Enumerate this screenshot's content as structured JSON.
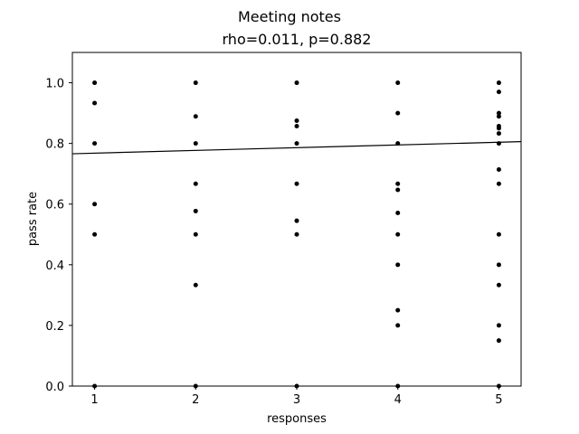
{
  "chart_data": {
    "type": "scatter",
    "title": "Meeting notes",
    "subtitle": "rho=0.011, p=0.882",
    "xlabel": "responses",
    "ylabel": "pass rate",
    "xlim": [
      0.78,
      5.22
    ],
    "ylim": [
      0.0,
      1.1
    ],
    "xticks": [
      1,
      2,
      3,
      4,
      5
    ],
    "xtick_labels": [
      "1",
      "2",
      "3",
      "4",
      "5"
    ],
    "yticks": [
      0.0,
      0.2,
      0.4,
      0.6,
      0.8,
      1.0
    ],
    "ytick_labels": [
      "0.0",
      "0.2",
      "0.4",
      "0.6",
      "0.8",
      "1.0"
    ],
    "grid": false,
    "legend": "none",
    "marker_color": "#000000",
    "line_color": "#000000",
    "points": [
      {
        "x": 1,
        "y": 1.0
      },
      {
        "x": 1,
        "y": 0.933
      },
      {
        "x": 1,
        "y": 0.8
      },
      {
        "x": 1,
        "y": 0.6
      },
      {
        "x": 1,
        "y": 0.5
      },
      {
        "x": 1,
        "y": 0.0
      },
      {
        "x": 2,
        "y": 1.0
      },
      {
        "x": 2,
        "y": 0.889
      },
      {
        "x": 2,
        "y": 0.8
      },
      {
        "x": 2,
        "y": 0.667
      },
      {
        "x": 2,
        "y": 0.577
      },
      {
        "x": 2,
        "y": 0.5
      },
      {
        "x": 2,
        "y": 0.333
      },
      {
        "x": 2,
        "y": 0.0
      },
      {
        "x": 3,
        "y": 1.0
      },
      {
        "x": 3,
        "y": 0.875
      },
      {
        "x": 3,
        "y": 0.857
      },
      {
        "x": 3,
        "y": 0.8
      },
      {
        "x": 3,
        "y": 0.667
      },
      {
        "x": 3,
        "y": 0.545
      },
      {
        "x": 3,
        "y": 0.5
      },
      {
        "x": 3,
        "y": 0.0
      },
      {
        "x": 4,
        "y": 1.0
      },
      {
        "x": 4,
        "y": 0.9
      },
      {
        "x": 4,
        "y": 0.8
      },
      {
        "x": 4,
        "y": 0.667
      },
      {
        "x": 4,
        "y": 0.647
      },
      {
        "x": 4,
        "y": 0.571
      },
      {
        "x": 4,
        "y": 0.5
      },
      {
        "x": 4,
        "y": 0.4
      },
      {
        "x": 4,
        "y": 0.25
      },
      {
        "x": 4,
        "y": 0.2
      },
      {
        "x": 4,
        "y": 0.0
      },
      {
        "x": 5,
        "y": 1.0
      },
      {
        "x": 5,
        "y": 0.97
      },
      {
        "x": 5,
        "y": 0.9
      },
      {
        "x": 5,
        "y": 0.889
      },
      {
        "x": 5,
        "y": 0.857
      },
      {
        "x": 5,
        "y": 0.85
      },
      {
        "x": 5,
        "y": 0.833
      },
      {
        "x": 5,
        "y": 0.8
      },
      {
        "x": 5,
        "y": 0.714
      },
      {
        "x": 5,
        "y": 0.667
      },
      {
        "x": 5,
        "y": 0.5
      },
      {
        "x": 5,
        "y": 0.4
      },
      {
        "x": 5,
        "y": 0.333
      },
      {
        "x": 5,
        "y": 0.2
      },
      {
        "x": 5,
        "y": 0.15
      },
      {
        "x": 5,
        "y": 0.0
      }
    ],
    "trend_line": {
      "x": [
        0.78,
        5.22
      ],
      "y": [
        0.766,
        0.806
      ]
    }
  }
}
